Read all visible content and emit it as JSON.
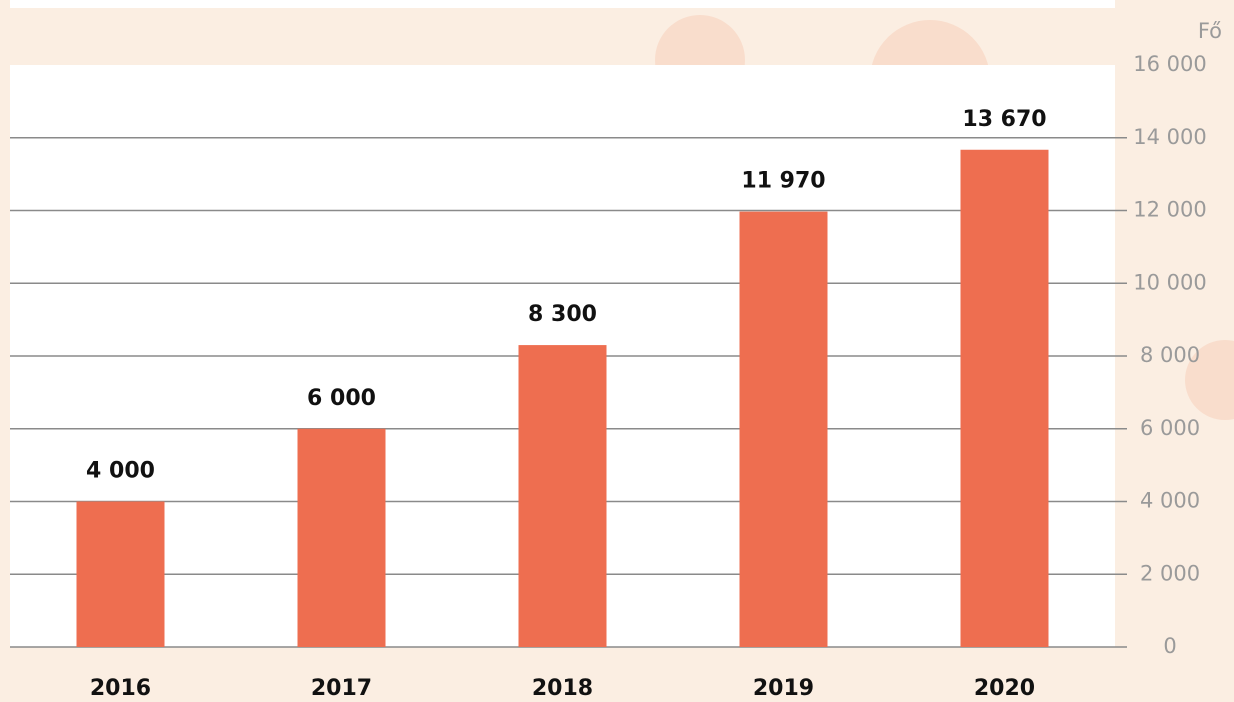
{
  "chart_data": {
    "type": "bar",
    "y_axis_label": "Fő",
    "categories": [
      "2016",
      "2017",
      "2018",
      "2019",
      "2020"
    ],
    "values": [
      4000,
      6000,
      8300,
      11970,
      13670
    ],
    "value_labels": [
      "4 000",
      "6 000",
      "8 300",
      "11 970",
      "13 670"
    ],
    "color": "#ee6e50",
    "ylim": [
      0,
      16000
    ],
    "yticks": [
      0,
      {
        "value": 2000,
        "label": "2 000"
      },
      {
        "value": 4000,
        "label": "4 000"
      },
      {
        "value": 6000,
        "label": "6 000"
      },
      {
        "value": 8000,
        "label": "8 000"
      },
      {
        "value": 10000,
        "label": "10 000"
      },
      {
        "value": 12000,
        "label": "12 000"
      },
      {
        "value": 14000,
        "label": "14 000"
      },
      {
        "value": 16000,
        "label": "16 000"
      }
    ],
    "y_axis_side": "right",
    "grid": true
  }
}
